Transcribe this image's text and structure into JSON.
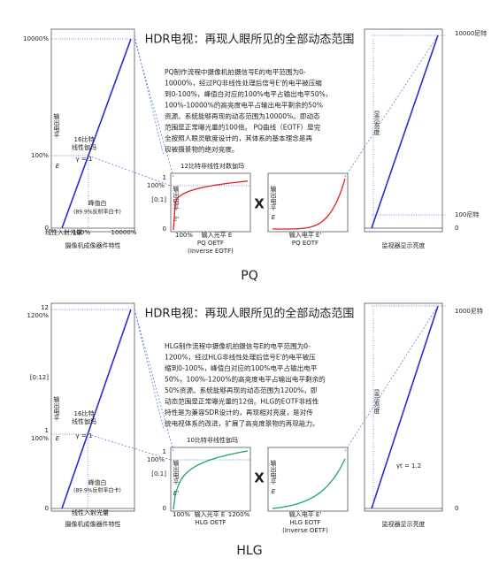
{
  "panels": [
    {
      "label": "PQ",
      "title": "HDR电视：再现人眼所见的全部动态范围",
      "paragraph": [
        "PQ制作流程中摄像机拍摄信号E的电平范围为0-",
        "10000%，经过PQ非线性处理后信号E'的电平被压缩",
        "到0-100%，峰值白对应的100%电平占输出电平50%，",
        "100%-10000%的高亮度电平占输出电平剩余的50%",
        "资源。系统能够再现的动态范围为10000%。即动态",
        "范围是正常曝光量的100倍。 PQ曲线（EOTF）是完",
        "全按照人眼灵敏度设计的，其体系的基本理念是再",
        "现被摄景物的绝对亮度。"
      ],
      "camera": {
        "y_labels": [
          "10000%",
          "100%",
          "0"
        ],
        "axis_label": "输出电平",
        "gamma_name": [
          "16比特",
          "线性伽玛"
        ],
        "gamma": "γ = 1",
        "signal": "E",
        "peak": "峰值白",
        "peak_note": "(89.9%反射率白卡)",
        "x_title": "线性入射光量",
        "x_labels": [
          "100%",
          "10000%"
        ],
        "caption": "摄像机成像器件特性"
      },
      "oetf": {
        "heading": "12比特非线性对数伽玛",
        "y_labels": [
          "1",
          "100%",
          "[0:1]",
          "0"
        ],
        "axis_label": "输出电平",
        "signal": "E'",
        "x_labels": [
          "100%"
        ],
        "x_title": "输入光平 E",
        "caption": [
          "PQ OETF",
          "(Inverse EOTF)"
        ]
      },
      "operator": "X",
      "eotf": {
        "axis_label": "输出电平",
        "signal": "E",
        "x_title": "输入电平 E'",
        "caption": [
          "PQ EOTF"
        ]
      },
      "monitor": {
        "y_labels": [
          "10000尼特",
          "100尼特",
          "0"
        ],
        "axis_label": "显示亮度",
        "caption": "监视器显示亮度"
      }
    },
    {
      "label": "HLG",
      "title": "HDR电视：再现人眼所见的全部动态范围",
      "paragraph": [
        "HLG制作流程中摄像机拍摄信号E的电平范围为0-",
        "1200%，经过HLG非线性处理后信号E'的电平被压",
        "缩到0-100%，峰值白对应的100%电平占输出电平",
        "50%，100%-1200%的高亮度电平占输出电平剩余的",
        "50%资源。系统能够再现的动态范围为1200%，即",
        "动态范围是正常曝光量的12倍。HLG的EOTF非线性",
        "特性是为兼容SDR设计的，再现相对亮度，是对传",
        "统电视体系的改进，扩展了高亮度景物的再现能力。"
      ],
      "camera": {
        "y_labels": [
          "12",
          "1200%",
          "[0:12]",
          "1",
          "100%",
          "0"
        ],
        "axis_label": "输出电平",
        "gamma_name": [
          "16比特",
          "线性伽玛"
        ],
        "gamma": "γ = 1",
        "signal": "E",
        "peak": "峰值白",
        "peak_note": "(89.9%反射率白卡)",
        "x_title": "线性入射光量",
        "x_labels": [],
        "caption": "摄像机成像器件特性"
      },
      "oetf": {
        "heading": "10比特非线性伽玛",
        "y_labels": [
          "1",
          "100%",
          "[0:1]",
          "0"
        ],
        "axis_label": "输出电平",
        "signal": "E'",
        "x_labels": [
          "100%",
          "1200%"
        ],
        "x_title": "输入光平 E",
        "caption": [
          "HLG OETF"
        ]
      },
      "operator": "X",
      "eotf": {
        "axis_label": "输出电平",
        "signal": "E",
        "x_title": "输入电平 E'",
        "caption": [
          "HLG EOTF",
          "(Inverse OETF)"
        ]
      },
      "monitor": {
        "y_labels": [
          "1000尼特",
          "0"
        ],
        "axis_label": "显示亮度",
        "gamma": "γt = 1.2",
        "caption": "监视器显示亮度"
      }
    }
  ]
}
